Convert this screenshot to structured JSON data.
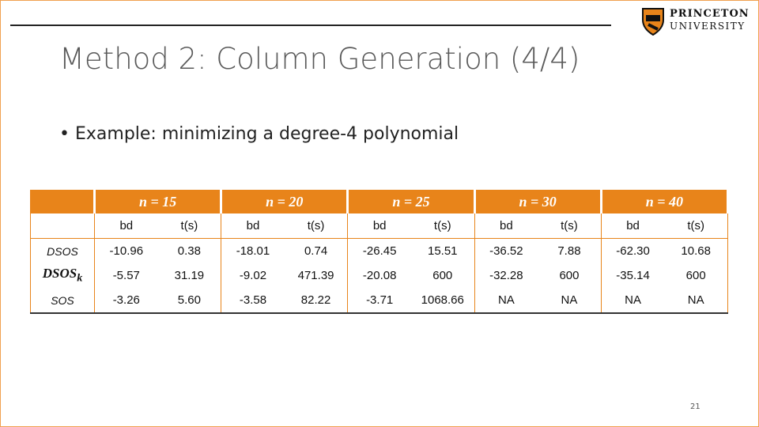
{
  "header": {
    "title": "Method 2: Column Generation (4/4)",
    "logo": {
      "line1": "PRINCETON",
      "line2": "UNIVERSITY"
    }
  },
  "bullet": "Example: minimizing a degree-4 polynomial",
  "table": {
    "groups": [
      "n = 15",
      "n = 20",
      "n = 25",
      "n = 30",
      "n = 40"
    ],
    "subheaders": [
      "bd",
      "t(s)",
      "bd",
      "t(s)",
      "bd",
      "t(s)",
      "bd",
      "t(s)",
      "bd",
      "t(s)"
    ],
    "rows": [
      {
        "label": {
          "text": "DSOS"
        },
        "cells": [
          "-10.96",
          "0.38",
          "-18.01",
          "0.74",
          "-26.45",
          "15.51",
          "-36.52",
          "7.88",
          "-62.30",
          "10.68"
        ]
      },
      {
        "label": {
          "text": "DSOS",
          "subscript": "k"
        },
        "cells": [
          "-5.57",
          "31.19",
          "-9.02",
          "471.39",
          "-20.08",
          "600",
          "-32.28",
          "600",
          "-35.14",
          "600"
        ]
      },
      {
        "label": {
          "text": "SOS"
        },
        "cells": [
          "-3.26",
          "5.60",
          "-3.58",
          "82.22",
          "-3.71",
          "1068.66",
          "NA",
          "NA",
          "NA",
          "NA"
        ]
      }
    ]
  },
  "page_number": "21"
}
